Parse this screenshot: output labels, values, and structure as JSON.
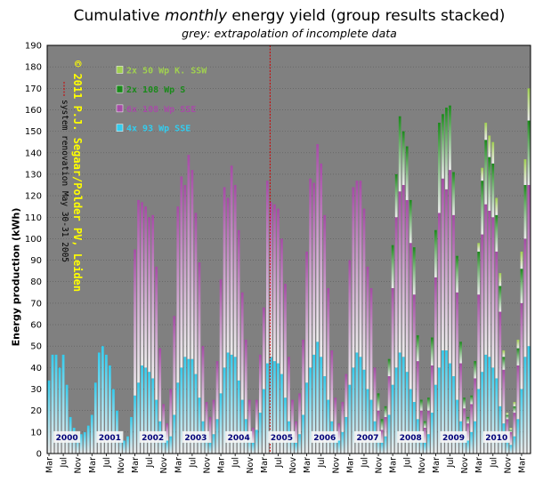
{
  "title_pre": "Cumulative ",
  "title_em": "monthly",
  "title_post": "  energy yield (group results stacked)",
  "subtitle": "grey: extrapolation of incomplete data",
  "copyright": "© 2011 P.J. Segaar/Polder PV, Leiden",
  "renovation_note": "system renovation May 30-31 2005",
  "colors": {
    "plot_bg": "#808080",
    "s4x93": "#33ccee",
    "s6x108": "#a64ca6",
    "s2x108": "#1a8a1a",
    "s2x50": "#a0d050",
    "renovation_line": "#cc0000"
  },
  "chart_data": {
    "type": "bar",
    "stacked": true,
    "ylabel": "Energy production (kWh)",
    "ylim": [
      0,
      190
    ],
    "yticks": [
      0,
      10,
      20,
      30,
      40,
      50,
      60,
      70,
      80,
      90,
      100,
      110,
      120,
      130,
      140,
      150,
      160,
      170,
      180,
      190
    ],
    "grid": true,
    "x_tick_labels": [
      "Mar",
      "Jul",
      "Nov",
      "Mar",
      "Jul",
      "Nov",
      "Mar",
      "Jul",
      "Nov",
      "Mar",
      "Jul",
      "Nov",
      "Mar",
      "Jul",
      "Nov",
      "Mar",
      "Jul",
      "Nov",
      "Mar",
      "Jul",
      "Nov",
      "Mar",
      "Jul",
      "Nov",
      "Mar",
      "Jul",
      "Nov",
      "Mar",
      "Jul",
      "Nov",
      "Mar",
      "Jul",
      "Nov",
      "Mar"
    ],
    "years": [
      "2000",
      "2001",
      "2002",
      "2003",
      "2004",
      "2005",
      "2006",
      "2007",
      "2008",
      "2009",
      "2010"
    ],
    "legend": [
      "2x 50 Wp K. SSW",
      "2x 108 Wp S",
      "6x 108 Wp SSE",
      "4x 93 Wp SSE"
    ],
    "legend_placement": "top-left",
    "renovation_marker": "2005-05",
    "x": [
      "2000-03",
      "2000-04",
      "2000-05",
      "2000-06",
      "2000-07",
      "2000-08",
      "2000-09",
      "2000-10",
      "2000-11",
      "2000-12",
      "2001-01",
      "2001-02",
      "2001-03",
      "2001-04",
      "2001-05",
      "2001-06",
      "2001-07",
      "2001-08",
      "2001-09",
      "2001-10",
      "2001-11",
      "2001-12",
      "2002-01",
      "2002-02",
      "2002-03",
      "2002-04",
      "2002-05",
      "2002-06",
      "2002-07",
      "2002-08",
      "2002-09",
      "2002-10",
      "2002-11",
      "2002-12",
      "2003-01",
      "2003-02",
      "2003-03",
      "2003-04",
      "2003-05",
      "2003-06",
      "2003-07",
      "2003-08",
      "2003-09",
      "2003-10",
      "2003-11",
      "2003-12",
      "2004-01",
      "2004-02",
      "2004-03",
      "2004-04",
      "2004-05",
      "2004-06",
      "2004-07",
      "2004-08",
      "2004-09",
      "2004-10",
      "2004-11",
      "2004-12",
      "2005-01",
      "2005-02",
      "2005-03",
      "2005-04",
      "2005-05",
      "2005-06",
      "2005-07",
      "2005-08",
      "2005-09",
      "2005-10",
      "2005-11",
      "2005-12",
      "2006-01",
      "2006-02",
      "2006-03",
      "2006-04",
      "2006-05",
      "2006-06",
      "2006-07",
      "2006-08",
      "2006-09",
      "2006-10",
      "2006-11",
      "2006-12",
      "2007-01",
      "2007-02",
      "2007-03",
      "2007-04",
      "2007-05",
      "2007-06",
      "2007-07",
      "2007-08",
      "2007-09",
      "2007-10",
      "2007-11",
      "2007-12",
      "2008-01",
      "2008-02",
      "2008-03",
      "2008-04",
      "2008-05",
      "2008-06",
      "2008-07",
      "2008-08",
      "2008-09",
      "2008-10",
      "2008-11",
      "2008-12",
      "2009-01",
      "2009-02",
      "2009-03",
      "2009-04",
      "2009-05",
      "2009-06",
      "2009-07",
      "2009-08",
      "2009-09",
      "2009-10",
      "2009-11",
      "2009-12",
      "2010-01",
      "2010-02",
      "2010-03",
      "2010-04",
      "2010-05",
      "2010-06",
      "2010-07",
      "2010-08",
      "2010-09",
      "2010-10",
      "2010-11",
      "2010-12",
      "2011-01",
      "2011-02",
      "2011-03",
      "2011-04",
      "2011-05"
    ],
    "series": [
      {
        "name": "4x 93 Wp SSE",
        "values": [
          34,
          46,
          46,
          40,
          46,
          32,
          17,
          12,
          8,
          9,
          10,
          13,
          18,
          33,
          47,
          50,
          46,
          41,
          30,
          20,
          10,
          6,
          8,
          17,
          27,
          33,
          41,
          40,
          38,
          35,
          25,
          15,
          9,
          6,
          8,
          18,
          33,
          40,
          45,
          44,
          44,
          37,
          26,
          15,
          9,
          5,
          9,
          16,
          28,
          40,
          47,
          46,
          45,
          34,
          25,
          16,
          8,
          5,
          11,
          19,
          30,
          42,
          45,
          43,
          42,
          37,
          26,
          15,
          8,
          5,
          9,
          18,
          33,
          40,
          46,
          52,
          45,
          36,
          25,
          15,
          9,
          6,
          10,
          17,
          32,
          40,
          47,
          45,
          39,
          30,
          25,
          15,
          8,
          5,
          8,
          18,
          32,
          40,
          47,
          45,
          38,
          30,
          24,
          16,
          8,
          5,
          9,
          19,
          32,
          40,
          48,
          48,
          42,
          36,
          25,
          15,
          9,
          6,
          10,
          15,
          30,
          38,
          46,
          45,
          40,
          35,
          22,
          14,
          6,
          4,
          8,
          16,
          30,
          45,
          50
        ]
      },
      {
        "name": "6x 108 Wp SSE",
        "values": [
          0,
          0,
          0,
          0,
          0,
          0,
          0,
          0,
          0,
          0,
          0,
          0,
          0,
          0,
          0,
          0,
          0,
          0,
          0,
          0,
          0,
          0,
          0,
          0,
          68,
          85,
          76,
          75,
          72,
          76,
          62,
          34,
          14,
          8,
          22,
          46,
          82,
          89,
          80,
          95,
          88,
          75,
          63,
          35,
          15,
          12,
          16,
          27,
          53,
          84,
          72,
          88,
          80,
          70,
          50,
          37,
          17,
          7,
          14,
          27,
          38,
          85,
          72,
          73,
          72,
          63,
          53,
          30,
          17,
          10,
          19,
          35,
          61,
          88,
          80,
          92,
          90,
          75,
          52,
          33,
          17,
          8,
          14,
          20,
          58,
          84,
          80,
          82,
          75,
          57,
          52,
          25,
          12,
          6,
          9,
          18,
          45,
          70,
          75,
          80,
          80,
          68,
          50,
          27,
          12,
          7,
          11,
          22,
          50,
          72,
          80,
          75,
          90,
          75,
          50,
          27,
          12,
          8,
          13,
          20,
          44,
          64,
          70,
          68,
          70,
          59,
          44,
          25,
          10,
          6,
          11,
          25,
          40,
          55,
          75
        ]
      },
      {
        "name": "2x 108 Wp S",
        "values": [
          0,
          0,
          0,
          0,
          0,
          0,
          0,
          0,
          0,
          0,
          0,
          0,
          0,
          0,
          0,
          0,
          0,
          0,
          0,
          0,
          0,
          0,
          0,
          0,
          0,
          0,
          0,
          0,
          0,
          0,
          0,
          0,
          0,
          0,
          0,
          0,
          0,
          0,
          0,
          0,
          0,
          0,
          0,
          0,
          0,
          0,
          0,
          0,
          0,
          0,
          0,
          0,
          0,
          0,
          0,
          0,
          0,
          0,
          0,
          0,
          0,
          0,
          0,
          0,
          0,
          0,
          0,
          0,
          0,
          0,
          0,
          0,
          0,
          0,
          0,
          0,
          0,
          0,
          0,
          0,
          0,
          0,
          0,
          0,
          0,
          0,
          0,
          0,
          0,
          0,
          0,
          0,
          8,
          5,
          5,
          8,
          20,
          20,
          35,
          25,
          25,
          20,
          22,
          12,
          5,
          3,
          6,
          13,
          22,
          42,
          30,
          38,
          30,
          20,
          17,
          10,
          5,
          3,
          4,
          8,
          20,
          25,
          30,
          25,
          25,
          17,
          12,
          6,
          2,
          1,
          3,
          8,
          16,
          25,
          30
        ]
      },
      {
        "name": "2x 50 Wp K. SSW",
        "values": [
          0,
          0,
          0,
          0,
          0,
          0,
          0,
          0,
          0,
          0,
          0,
          0,
          0,
          0,
          0,
          0,
          0,
          0,
          0,
          0,
          0,
          0,
          0,
          0,
          0,
          0,
          0,
          0,
          0,
          0,
          0,
          0,
          0,
          0,
          0,
          0,
          0,
          0,
          0,
          0,
          0,
          0,
          0,
          0,
          0,
          0,
          0,
          0,
          0,
          0,
          0,
          0,
          0,
          0,
          0,
          0,
          0,
          0,
          0,
          0,
          0,
          0,
          0,
          0,
          0,
          0,
          0,
          0,
          0,
          0,
          0,
          0,
          0,
          0,
          0,
          0,
          0,
          0,
          0,
          0,
          0,
          0,
          0,
          0,
          0,
          0,
          0,
          0,
          0,
          0,
          0,
          0,
          0,
          0,
          0,
          0,
          0,
          0,
          0,
          0,
          0,
          0,
          0,
          0,
          0,
          0,
          0,
          0,
          0,
          0,
          0,
          0,
          0,
          0,
          0,
          0,
          0,
          0,
          0,
          0,
          4,
          6,
          8,
          10,
          10,
          8,
          6,
          3,
          1,
          1,
          2,
          4,
          8,
          12,
          15
        ]
      }
    ]
  }
}
